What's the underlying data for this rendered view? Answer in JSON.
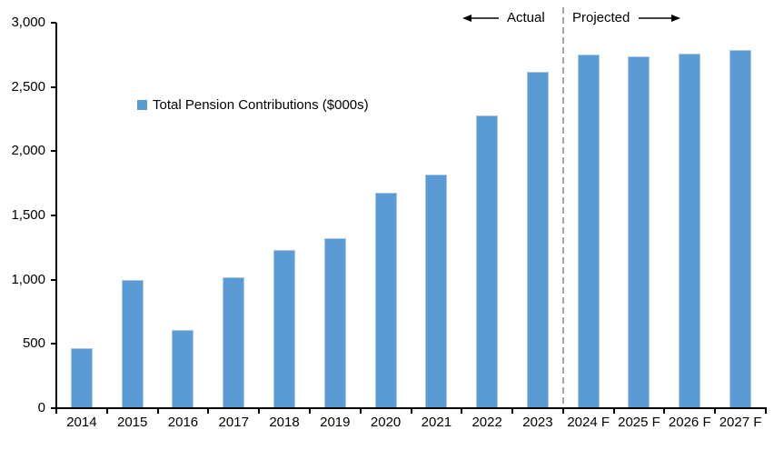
{
  "chart_data": {
    "type": "bar",
    "title": "",
    "legend": "Total Pension Contributions ($000s)",
    "categories": [
      "2014",
      "2015",
      "2016",
      "2017",
      "2018",
      "2019",
      "2020",
      "2021",
      "2022",
      "2023",
      "2024 F",
      "2025 F",
      "2026 F",
      "2027 F"
    ],
    "values": [
      470,
      1000,
      610,
      1020,
      1230,
      1320,
      1680,
      1820,
      2280,
      2620,
      2750,
      2740,
      2760,
      2790
    ],
    "ylim": [
      0,
      3000
    ],
    "ytick_step": 500,
    "ytick_labels": [
      "3,000",
      "2,500",
      "2,000",
      "1,500",
      "1,000",
      "500",
      "0"
    ],
    "xlabel": "",
    "ylabel": "",
    "grid": false,
    "legend_position": "inside-upper-left",
    "annotations": {
      "actual": "Actual",
      "projected": "Projected",
      "divider_after_index": 9
    },
    "colors": {
      "bar": "#5B9BD5",
      "bar_edge": "#A9C7E7",
      "divider": "#A6A6A6",
      "axis": "#000000",
      "text": "#000000"
    }
  }
}
